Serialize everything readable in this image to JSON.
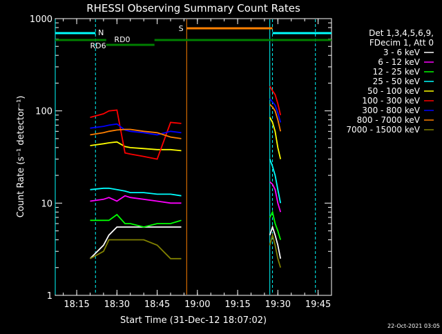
{
  "chart_data": {
    "type": "line",
    "title": "RHESSI Observing Summary Count Rates",
    "xlabel": "Start Time (31-Dec-12 18:07:02)",
    "ylabel": "Count Rate (s⁻¹ detector⁻¹)",
    "yscale": "log",
    "ylim": [
      1,
      1000
    ],
    "xlim": [
      "18:07",
      "19:50"
    ],
    "x_ticks": [
      "18:15",
      "18:30",
      "18:45",
      "19:00",
      "19:15",
      "19:30",
      "19:45"
    ],
    "y_ticks": [
      "1",
      "10",
      "100",
      "1000"
    ],
    "legend_header": [
      "Det 1,3,4,5,6,9,",
      "FDecim 1, Att 0"
    ],
    "legend_position": "right",
    "footer_date": "22-Oct-2021 03:05",
    "flags": [
      {
        "label": "N",
        "color": "#00ffff"
      },
      {
        "label": "S",
        "color": "#ff8000"
      },
      {
        "label": "RD0",
        "color": "#008000"
      },
      {
        "label": "RD6",
        "color": "#008000"
      }
    ],
    "x": [
      "18:20",
      "18:25",
      "18:27",
      "18:30",
      "18:33",
      "18:35",
      "18:40",
      "18:45",
      "18:50",
      "18:54",
      "19:27",
      "19:28",
      "19:29",
      "19:30",
      "19:31"
    ],
    "series": [
      {
        "name": "3 - 6 keV",
        "color": "#ffffff",
        "values": [
          2.5,
          3.5,
          4.5,
          5.5,
          5.5,
          5.5,
          5.5,
          5.5,
          5.5,
          5.5,
          4.5,
          5.5,
          4.5,
          3.5,
          2.5
        ]
      },
      {
        "name": "6 - 12 keV",
        "color": "#ff00ff",
        "values": [
          10.5,
          11,
          11.5,
          10.5,
          12,
          11.5,
          11,
          10.5,
          10,
          10,
          17,
          16,
          14,
          10,
          8
        ]
      },
      {
        "name": "12 - 25 keV",
        "color": "#00ff00",
        "values": [
          6.5,
          6.5,
          6.5,
          7.5,
          6,
          6,
          5.5,
          6,
          6,
          6.5,
          7,
          8,
          6,
          5,
          4
        ]
      },
      {
        "name": "25 - 50 keV",
        "color": "#00ffff",
        "values": [
          14,
          14.5,
          14.5,
          14,
          13.5,
          13,
          13,
          12.5,
          12.5,
          12,
          30,
          25,
          20,
          14,
          10
        ]
      },
      {
        "name": "50 - 100 keV",
        "color": "#ffff00",
        "values": [
          42,
          44,
          45,
          46,
          41,
          40,
          39,
          38,
          38,
          37,
          85,
          75,
          60,
          40,
          30
        ]
      },
      {
        "name": "100 - 300 keV",
        "color": "#ff0000",
        "values": [
          85,
          93,
          100,
          102,
          35,
          34,
          32,
          30,
          75,
          73,
          185,
          165,
          150,
          120,
          90
        ]
      },
      {
        "name": "300 - 800 keV",
        "color": "#0000ff",
        "values": [
          65,
          68,
          70,
          72,
          62,
          60,
          58,
          55,
          60,
          58,
          135,
          125,
          115,
          95,
          75
        ]
      },
      {
        "name": "800 - 7000 keV",
        "color": "#ff8000",
        "values": [
          55,
          58,
          60,
          62,
          63,
          63,
          60,
          58,
          52,
          50,
          118,
          110,
          100,
          80,
          60
        ]
      },
      {
        "name": "7000 - 15000 keV",
        "color": "#808000",
        "values": [
          2.5,
          3,
          4,
          4,
          4,
          4,
          4,
          3.5,
          2.5,
          2.5,
          3.5,
          4.5,
          3.5,
          2.5,
          2
        ]
      }
    ]
  }
}
